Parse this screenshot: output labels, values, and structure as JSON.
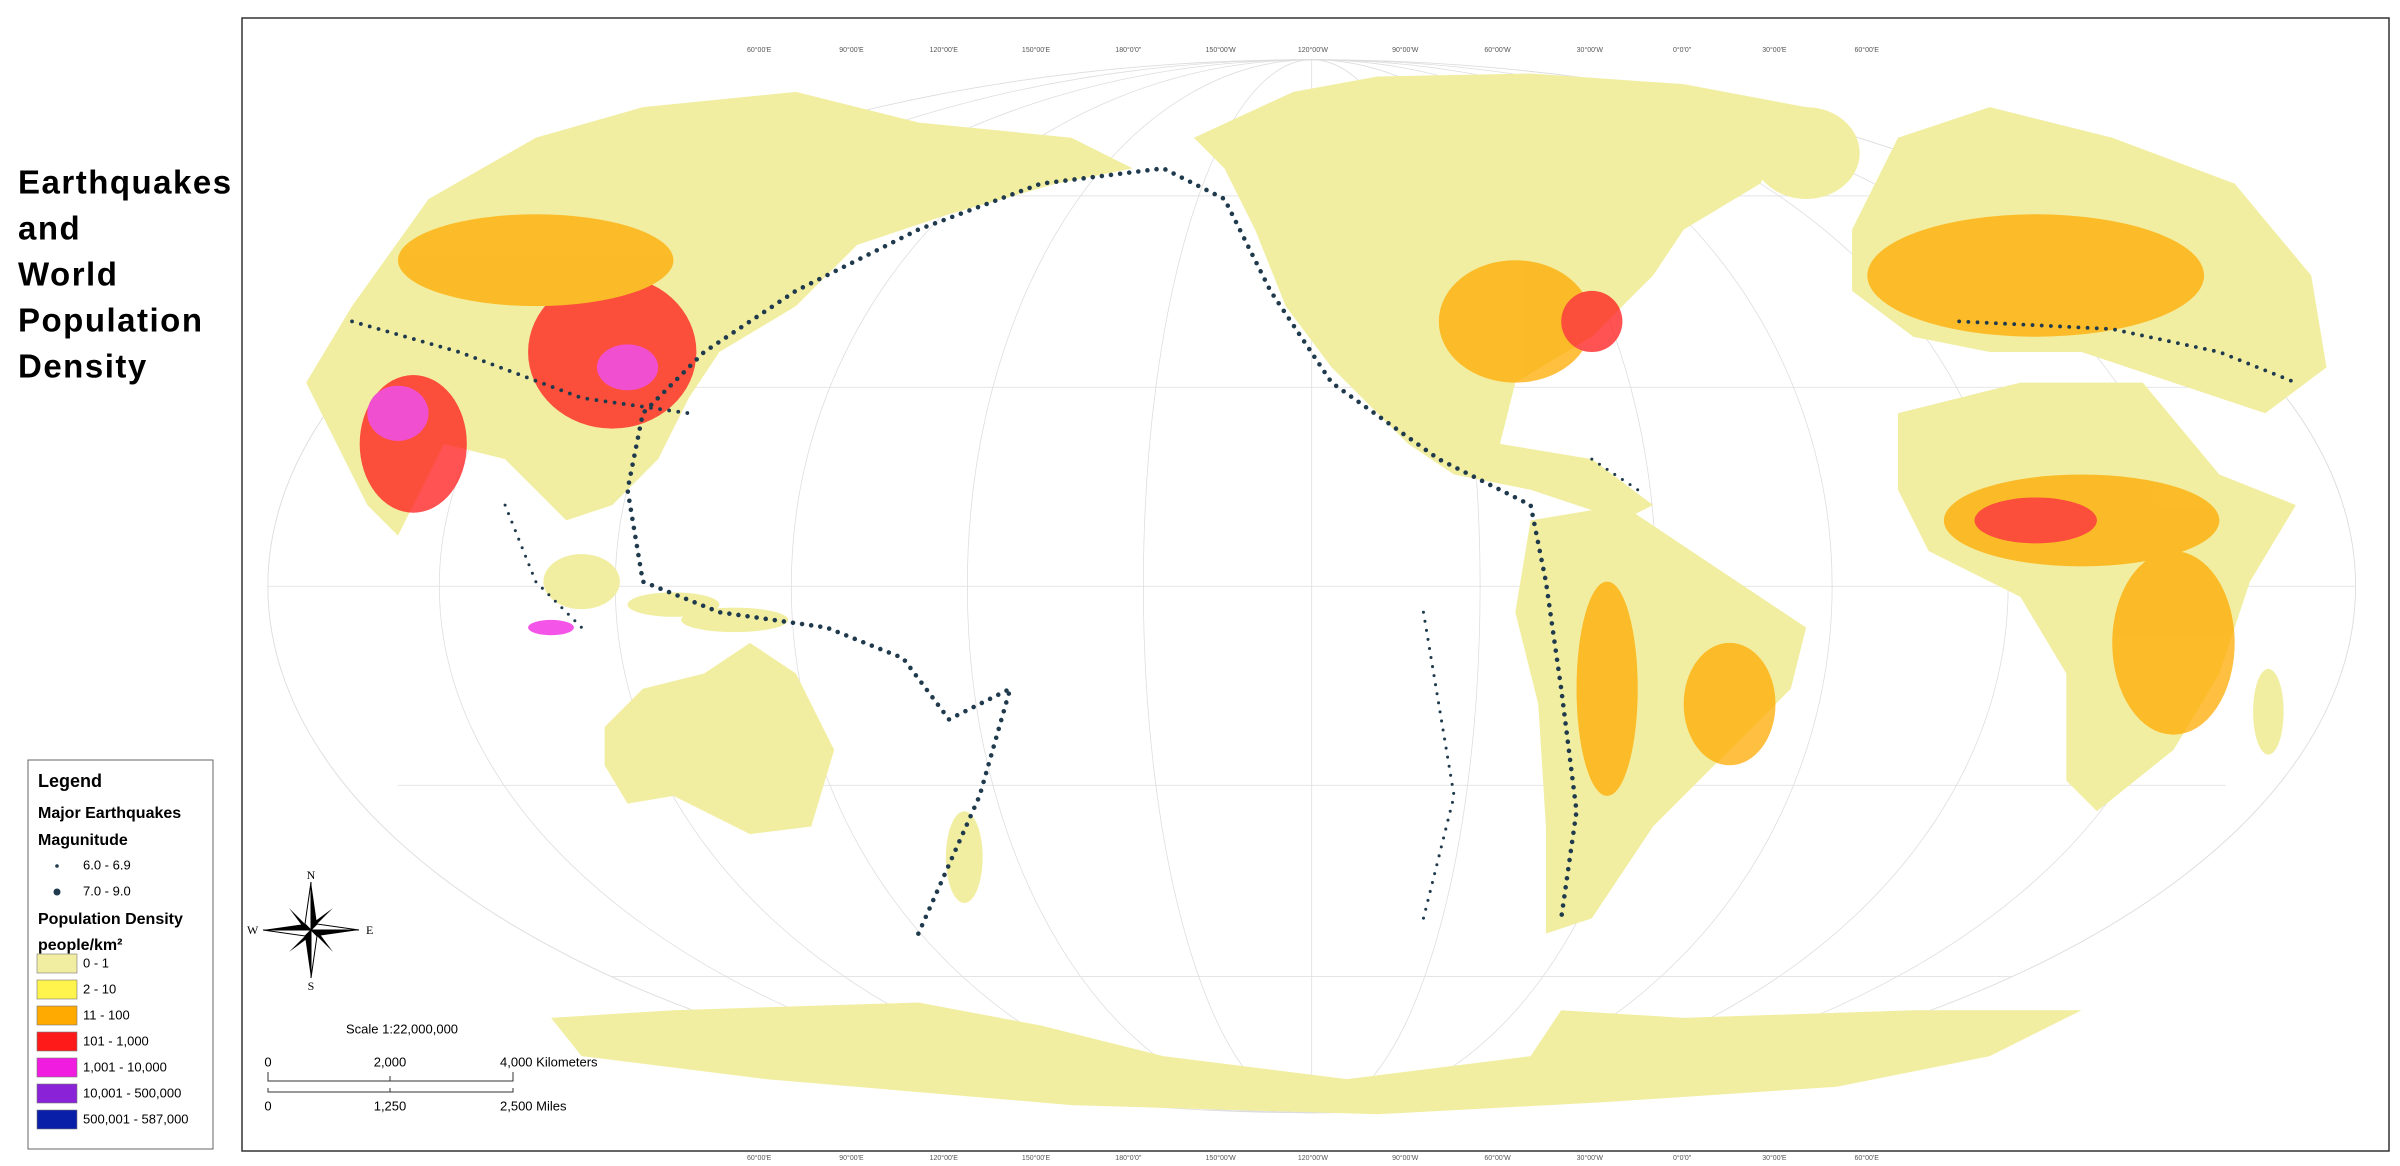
{
  "title": {
    "lines": [
      "Earthquakes",
      "and",
      "World",
      "Population",
      "Density"
    ]
  },
  "legend": {
    "title": "Legend",
    "earthquakes": {
      "heading": "Major Earthquakes",
      "subheading": "Magunitude",
      "items": [
        {
          "label": "6.0 - 6.9"
        },
        {
          "label": "7.0 - 9.0"
        }
      ]
    },
    "population": {
      "heading": "Population Density",
      "unit": "people/km²",
      "classes": [
        {
          "label": "0 - 1",
          "color": "#f2eea1"
        },
        {
          "label": "2 - 10",
          "color": "#fff34d"
        },
        {
          "label": "11 - 100",
          "color": "#ffaa00"
        },
        {
          "label": "101 - 1,000",
          "color": "#ff1a1a"
        },
        {
          "label": "1,001 - 10,000",
          "color": "#f01ce0"
        },
        {
          "label": "10,001 - 500,000",
          "color": "#8a22d8"
        },
        {
          "label": "500,001 - 587,000",
          "color": "#0a1fa8"
        }
      ]
    }
  },
  "scale": {
    "ratio": "Scale 1:22,000,000",
    "km": [
      "0",
      "2,000",
      "4,000 Kilometers"
    ],
    "miles": [
      "0",
      "1,250",
      "2,500 Miles"
    ]
  },
  "compass": {
    "n": "N",
    "s": "S",
    "e": "E",
    "w": "W"
  },
  "graticule": {
    "meridians": [
      "60°00'E",
      "90°00'E",
      "120°00'E",
      "150°00'E",
      "180°0'0\"",
      "150°00'W",
      "120°00'W",
      "90°00'W",
      "60°00'W",
      "30°00'W",
      "0°0'0\"",
      "30°00'E",
      "60°00'E"
    ]
  }
}
